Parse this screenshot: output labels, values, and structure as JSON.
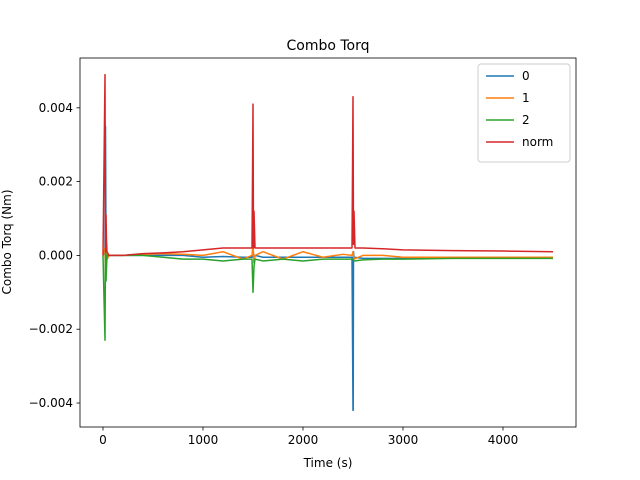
{
  "chart_data": {
    "type": "line",
    "title": "Combo Torq",
    "xlabel": "Time (s)",
    "ylabel": "Combo Torq (Nm)",
    "xlim": [
      -230,
      4730
    ],
    "ylim": [
      -0.00465,
      0.00535
    ],
    "xticks": [
      0,
      1000,
      2000,
      3000,
      4000
    ],
    "xtick_labels": [
      "0",
      "1000",
      "2000",
      "3000",
      "4000"
    ],
    "yticks": [
      -0.004,
      -0.002,
      0.0,
      0.002,
      0.004
    ],
    "ytick_labels": [
      "−0.004",
      "−0.002",
      "0.000",
      "0.002",
      "0.004"
    ],
    "grid": false,
    "legend_position": "top-right",
    "series": [
      {
        "name": "0",
        "color": "#1f77b4",
        "x": [
          0,
          20,
          25,
          30,
          40,
          60,
          100,
          200,
          400,
          600,
          800,
          1000,
          1200,
          1400,
          1490,
          1500,
          1510,
          1520,
          1600,
          1800,
          2000,
          2200,
          2400,
          2490,
          2500,
          2502,
          2505,
          2510,
          2600,
          2800,
          3000,
          3500,
          4000,
          4500
        ],
        "y": [
          0.0,
          0.0001,
          0.0035,
          0.0002,
          -0.0001,
          0.0,
          0.0,
          0.0,
          0.0,
          0.0,
          0.0,
          -5e-05,
          -3e-05,
          -5e-05,
          -5e-05,
          0.0002,
          -0.0002,
          0.0,
          -5e-05,
          -5e-05,
          -5e-05,
          -5e-05,
          -5e-05,
          -5e-05,
          -0.0042,
          -0.0042,
          0.0001,
          -5e-05,
          -8e-05,
          -8e-05,
          -8e-05,
          -7e-05,
          -7e-05,
          -7e-05
        ]
      },
      {
        "name": "1",
        "color": "#ff7f0e",
        "x": [
          0,
          20,
          25,
          30,
          40,
          60,
          100,
          200,
          400,
          600,
          800,
          1000,
          1200,
          1400,
          1490,
          1500,
          1510,
          1520,
          1600,
          1800,
          2000,
          2200,
          2400,
          2490,
          2500,
          2510,
          2600,
          2800,
          3000,
          3500,
          4000,
          4500
        ],
        "y": [
          0.0,
          0.0002,
          -0.0006,
          0.0003,
          -0.0001,
          0.0,
          0.0,
          0.0,
          3e-05,
          5e-05,
          3e-05,
          0.0,
          0.0001,
          -0.0001,
          0.0,
          0.0003,
          -0.0002,
          0.0,
          0.0001,
          -0.0001,
          0.0001,
          -5e-05,
          3e-05,
          0.0,
          0.0001,
          -0.0001,
          0.0,
          0.0,
          -5e-05,
          -5e-05,
          -5e-05,
          -5e-05
        ]
      },
      {
        "name": "2",
        "color": "#2ca02c",
        "x": [
          0,
          20,
          25,
          30,
          40,
          60,
          100,
          200,
          400,
          600,
          800,
          1000,
          1200,
          1400,
          1490,
          1500,
          1510,
          1520,
          1600,
          1800,
          2000,
          2200,
          2400,
          2490,
          2500,
          2510,
          2600,
          2800,
          3000,
          3500,
          4000,
          4500
        ],
        "y": [
          0.0,
          -0.0023,
          0.0003,
          -0.0007,
          0.0,
          0.0,
          0.0,
          0.0,
          0.0,
          -5e-05,
          -0.0001,
          -0.0001,
          -0.00015,
          -0.0001,
          -0.0001,
          -0.001,
          -0.0003,
          -0.0001,
          -0.00015,
          -0.0001,
          -0.00015,
          -0.0001,
          -0.0001,
          -0.0001,
          -0.0001,
          -0.00015,
          -0.00012,
          -0.0001,
          -0.0001,
          -8e-05,
          -8e-05,
          -8e-05
        ]
      },
      {
        "name": "norm",
        "color": "#d62728",
        "x": [
          0,
          20,
          25,
          30,
          35,
          40,
          60,
          100,
          200,
          400,
          600,
          800,
          1000,
          1200,
          1400,
          1490,
          1500,
          1505,
          1510,
          1520,
          1600,
          1800,
          2000,
          2200,
          2400,
          2490,
          2500,
          2505,
          2510,
          2520,
          2600,
          2800,
          3000,
          3500,
          4000,
          4500
        ],
        "y": [
          0.0,
          0.0049,
          0.0001,
          0.0011,
          0.0004,
          0.0001,
          0.0,
          0.0,
          0.0,
          5e-05,
          7e-05,
          0.0001,
          0.00015,
          0.0002,
          0.0002,
          0.0002,
          0.0041,
          0.0002,
          0.0012,
          0.0002,
          0.0002,
          0.0002,
          0.0002,
          0.0002,
          0.0002,
          0.0002,
          0.0043,
          0.0003,
          0.0012,
          0.0002,
          0.0002,
          0.00018,
          0.00015,
          0.00013,
          0.00012,
          0.0001
        ]
      }
    ]
  }
}
